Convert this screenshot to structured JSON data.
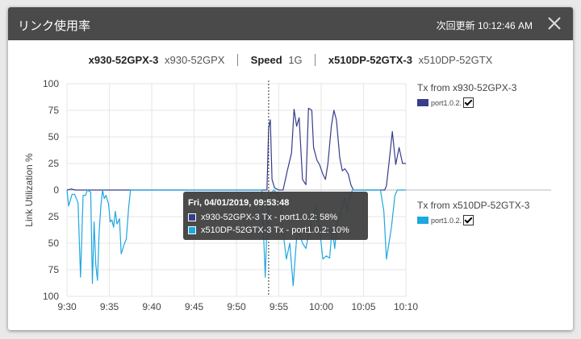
{
  "window": {
    "title": "リンク使用率",
    "last_update_label": "次回更新",
    "last_update_time": "10:12:46 AM"
  },
  "link_info": {
    "device_a": "x930-52GPX-3",
    "model_a": "x930-52GPX",
    "speed_label": "Speed",
    "speed_value": "1G",
    "device_b": "x510DP-52GTX-3",
    "model_b": "x510DP-52GTX"
  },
  "legend": {
    "tx_a_title": "Tx from x930-52GPX-3",
    "tx_a_port": "port1.0.2.",
    "tx_a_color": "#353d8c",
    "tx_a_checked": true,
    "tx_b_title": "Tx from x510DP-52GTX-3",
    "tx_b_port": "port1.0.2.",
    "tx_b_color": "#1ea7e1",
    "tx_b_checked": true
  },
  "tooltip": {
    "title": "Fri, 04/01/2019, 09:53:48",
    "row_a": "x930-52GPX-3 Tx - port1.0.2: 58%",
    "row_b": "x510DP-52GTX-3 Tx - port1.0.2: 10%"
  },
  "chart_data": {
    "type": "line",
    "ylabel": "Link Utilization %",
    "x_tick_labels": [
      "9:30",
      "9:35",
      "9:40",
      "9:45",
      "9:50",
      "9:55",
      "10:00",
      "10:05",
      "10:10"
    ],
    "y_tick_labels_upper": [
      "100",
      "75",
      "50",
      "25",
      "0"
    ],
    "y_tick_labels_lower": [
      "25",
      "50",
      "75",
      "100"
    ],
    "xlim_minutes_after_9_30": [
      0,
      40
    ],
    "ylim": [
      -100,
      100
    ],
    "hover_time_minutes_after_9_30": 23.8,
    "series": [
      {
        "name": "Tx from x930-52GPX-3",
        "color": "#353d8c",
        "direction": "up",
        "points": [
          [
            0,
            0
          ],
          [
            0.5,
            1
          ],
          [
            1,
            0
          ],
          [
            4,
            0
          ],
          [
            8,
            0
          ],
          [
            12,
            0
          ],
          [
            16,
            0
          ],
          [
            20,
            0
          ],
          [
            23.6,
            0
          ],
          [
            23.8,
            58
          ],
          [
            24.0,
            66
          ],
          [
            24.2,
            10
          ],
          [
            24.5,
            2
          ],
          [
            25,
            0
          ],
          [
            25.5,
            0
          ],
          [
            26,
            18
          ],
          [
            26.5,
            35
          ],
          [
            26.8,
            76
          ],
          [
            27.1,
            60
          ],
          [
            27.4,
            68
          ],
          [
            27.8,
            10
          ],
          [
            28.2,
            5
          ],
          [
            28.5,
            77
          ],
          [
            28.9,
            75
          ],
          [
            29.1,
            40
          ],
          [
            29.5,
            28
          ],
          [
            29.8,
            24
          ],
          [
            30.2,
            15
          ],
          [
            30.5,
            10
          ],
          [
            30.8,
            25
          ],
          [
            31.2,
            60
          ],
          [
            31.5,
            75
          ],
          [
            31.8,
            66
          ],
          [
            32.2,
            30
          ],
          [
            32.5,
            18
          ],
          [
            32.8,
            20
          ],
          [
            33.2,
            15
          ],
          [
            33.5,
            5
          ],
          [
            33.8,
            0
          ],
          [
            35,
            0
          ],
          [
            36,
            0
          ],
          [
            37,
            0
          ],
          [
            37.5,
            0
          ],
          [
            37.7,
            4
          ],
          [
            38,
            25
          ],
          [
            38.4,
            55
          ],
          [
            38.8,
            24
          ],
          [
            39.2,
            40
          ],
          [
            39.6,
            25
          ],
          [
            40,
            25
          ]
        ]
      },
      {
        "name": "Tx from x510DP-52GTX-3",
        "color": "#1ea7e1",
        "direction": "down",
        "points": [
          [
            0,
            0
          ],
          [
            0.2,
            15
          ],
          [
            0.6,
            4
          ],
          [
            0.9,
            4
          ],
          [
            1.3,
            12
          ],
          [
            1.6,
            82
          ],
          [
            1.9,
            5
          ],
          [
            2.2,
            5
          ],
          [
            2.4,
            0
          ],
          [
            2.8,
            2
          ],
          [
            3.0,
            88
          ],
          [
            3.2,
            30
          ],
          [
            3.4,
            70
          ],
          [
            3.6,
            85
          ],
          [
            3.8,
            40
          ],
          [
            4.0,
            15
          ],
          [
            4.2,
            0
          ],
          [
            4.4,
            8
          ],
          [
            4.6,
            5
          ],
          [
            4.9,
            13
          ],
          [
            5.1,
            30
          ],
          [
            5.3,
            28
          ],
          [
            5.5,
            35
          ],
          [
            5.7,
            20
          ],
          [
            5.9,
            32
          ],
          [
            6.2,
            27
          ],
          [
            6.4,
            60
          ],
          [
            6.6,
            55
          ],
          [
            6.8,
            50
          ],
          [
            7.0,
            46
          ],
          [
            7.3,
            15
          ],
          [
            7.5,
            0
          ],
          [
            10,
            0
          ],
          [
            15,
            0
          ],
          [
            20,
            0
          ],
          [
            23.0,
            0
          ],
          [
            23.4,
            82
          ],
          [
            23.7,
            10
          ],
          [
            24.0,
            5
          ],
          [
            24.4,
            0
          ],
          [
            24.8,
            3
          ],
          [
            25.2,
            10
          ],
          [
            25.5,
            40
          ],
          [
            25.9,
            65
          ],
          [
            26.3,
            50
          ],
          [
            26.7,
            90
          ],
          [
            27.1,
            45
          ],
          [
            27.4,
            40
          ],
          [
            27.8,
            50
          ],
          [
            28.2,
            55
          ],
          [
            28.6,
            38
          ],
          [
            29.0,
            25
          ],
          [
            29.4,
            15
          ],
          [
            29.8,
            35
          ],
          [
            30.2,
            65
          ],
          [
            30.6,
            62
          ],
          [
            31.0,
            64
          ],
          [
            31.3,
            35
          ],
          [
            31.6,
            55
          ],
          [
            31.9,
            30
          ],
          [
            32.2,
            25
          ],
          [
            32.5,
            16
          ],
          [
            32.8,
            8
          ],
          [
            33.1,
            20
          ],
          [
            33.4,
            5
          ],
          [
            33.7,
            0
          ],
          [
            35,
            0
          ],
          [
            36,
            0
          ],
          [
            37,
            0
          ],
          [
            37.4,
            20
          ],
          [
            37.7,
            65
          ],
          [
            38.0,
            50
          ],
          [
            38.3,
            35
          ],
          [
            38.7,
            5
          ],
          [
            39.0,
            0
          ],
          [
            40,
            0
          ]
        ]
      }
    ]
  }
}
